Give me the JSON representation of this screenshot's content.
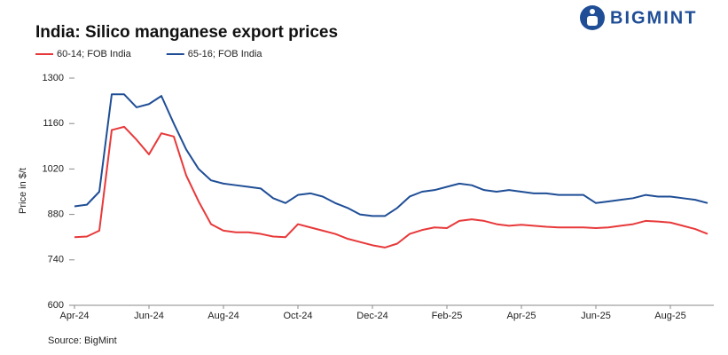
{
  "chart_data": {
    "type": "line",
    "title": "India: Silico manganese export prices",
    "brand": "BIGMINT",
    "y_label": "Price in $/t",
    "source": "Source: BigMint",
    "categories": [
      "Apr-24",
      null,
      null,
      null,
      null,
      null,
      "Jun-24",
      null,
      null,
      null,
      null,
      null,
      "Aug-24",
      null,
      null,
      null,
      null,
      null,
      "Oct-24",
      null,
      null,
      null,
      null,
      null,
      "Dec-24",
      null,
      null,
      null,
      null,
      null,
      "Feb-25",
      null,
      null,
      null,
      null,
      null,
      "Apr-25",
      null,
      null,
      null,
      null,
      null,
      "Jun-25",
      null,
      null,
      null,
      null,
      null,
      "Aug-25",
      null,
      null,
      null
    ],
    "series": [
      {
        "name": "60-14; FOB India",
        "color": "#e8393a",
        "values": [
          810,
          812,
          830,
          1140,
          1150,
          1110,
          1065,
          1130,
          1120,
          1000,
          920,
          850,
          830,
          825,
          825,
          820,
          812,
          810,
          850,
          840,
          830,
          820,
          805,
          795,
          785,
          778,
          790,
          820,
          832,
          840,
          838,
          860,
          865,
          860,
          850,
          845,
          848,
          845,
          842,
          840,
          840,
          840,
          838,
          840,
          845,
          850,
          860,
          858,
          855,
          845,
          835,
          820
        ]
      },
      {
        "name": "65-16; FOB India",
        "color": "#1f4e96",
        "values": [
          905,
          910,
          950,
          1250,
          1250,
          1210,
          1220,
          1245,
          1160,
          1080,
          1020,
          985,
          975,
          970,
          965,
          960,
          930,
          915,
          940,
          945,
          935,
          915,
          900,
          880,
          875,
          875,
          900,
          935,
          950,
          955,
          965,
          975,
          970,
          955,
          950,
          955,
          950,
          945,
          945,
          940,
          940,
          940,
          915,
          920,
          925,
          930,
          940,
          935,
          935,
          930,
          925,
          915
        ]
      }
    ],
    "ylim": [
      600,
      1300
    ],
    "yticks": [
      600,
      740,
      880,
      1020,
      1160,
      1300
    ],
    "grid": false
  }
}
